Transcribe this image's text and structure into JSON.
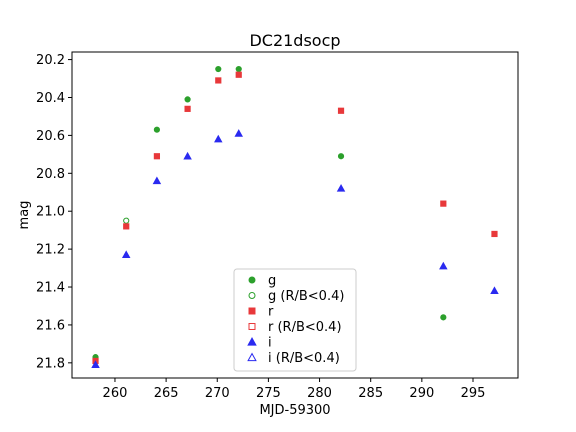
{
  "chart_data": {
    "type": "scatter",
    "title": "DC21dsocp",
    "xlabel": "MJD-59300",
    "ylabel": "mag",
    "xlim": [
      255.8,
      299.4
    ],
    "ylim": [
      21.88,
      20.16
    ],
    "y_inverted": true,
    "x_ticks": [
      260,
      265,
      270,
      275,
      280,
      285,
      290,
      295
    ],
    "y_ticks": [
      "20.2",
      "20.4",
      "20.6",
      "20.8",
      "21.0",
      "21.2",
      "21.4",
      "21.6",
      "21.8"
    ],
    "grid": false,
    "legend_position": "lower-center",
    "series": [
      {
        "name": "g",
        "color": "#2ca02c",
        "marker": "circle",
        "filled": true,
        "points": [
          [
            258.1,
            21.77
          ],
          [
            264.1,
            20.57
          ],
          [
            267.1,
            20.41
          ],
          [
            270.1,
            20.25
          ],
          [
            272.1,
            20.25
          ],
          [
            282.1,
            20.71
          ],
          [
            292.1,
            21.56
          ]
        ]
      },
      {
        "name": "g (R/B<0.4)",
        "color": "#2ca02c",
        "marker": "circle",
        "filled": false,
        "points": [
          [
            261.1,
            21.05
          ]
        ]
      },
      {
        "name": "r",
        "color": "#e8383a",
        "marker": "square",
        "filled": true,
        "points": [
          [
            258.1,
            21.79
          ],
          [
            261.1,
            21.08
          ],
          [
            264.1,
            20.71
          ],
          [
            267.1,
            20.46
          ],
          [
            270.1,
            20.31
          ],
          [
            272.1,
            20.28
          ],
          [
            282.1,
            20.47
          ],
          [
            292.1,
            20.96
          ],
          [
            297.1,
            21.12
          ]
        ]
      },
      {
        "name": "r (R/B<0.4)",
        "color": "#e8383a",
        "marker": "square",
        "filled": false,
        "points": []
      },
      {
        "name": "i",
        "color": "#2a2af0",
        "marker": "triangle",
        "filled": true,
        "points": [
          [
            258.1,
            21.81
          ],
          [
            261.1,
            21.23
          ],
          [
            264.1,
            20.84
          ],
          [
            267.1,
            20.71
          ],
          [
            270.1,
            20.62
          ],
          [
            272.1,
            20.59
          ],
          [
            282.1,
            20.88
          ],
          [
            292.1,
            21.29
          ],
          [
            297.1,
            21.42
          ]
        ]
      },
      {
        "name": "i (R/B<0.4)",
        "color": "#2a2af0",
        "marker": "triangle",
        "filled": false,
        "points": []
      }
    ]
  }
}
